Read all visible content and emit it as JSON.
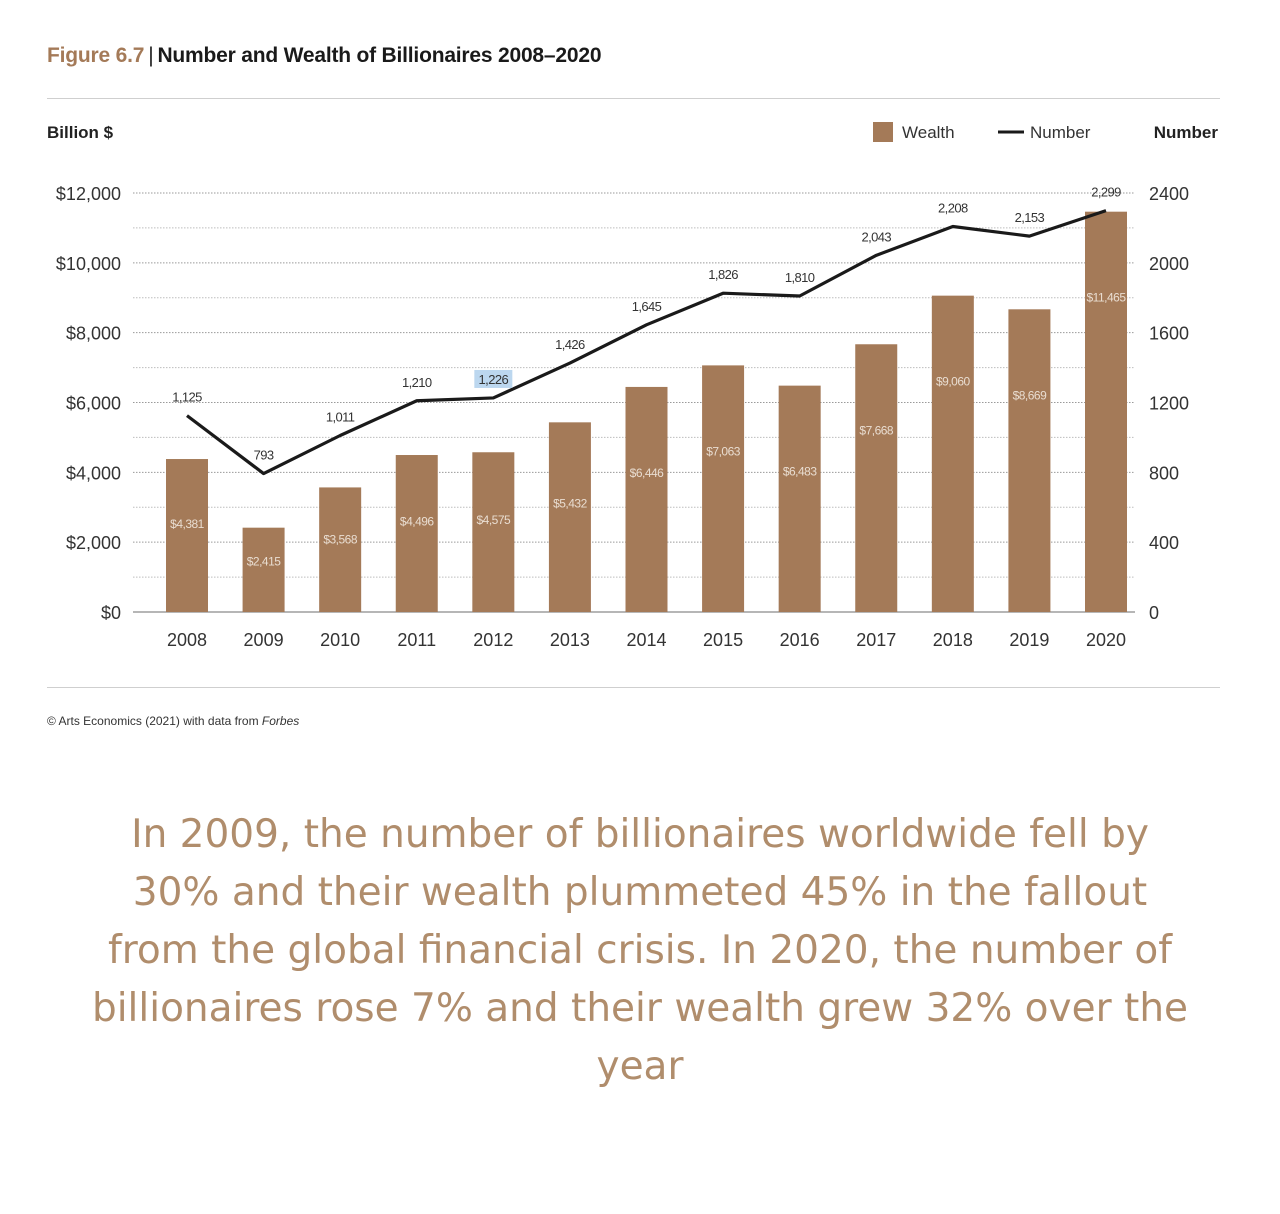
{
  "figure": {
    "label": "Figure 6.7",
    "separator": "|",
    "title": "Number and Wealth of Billionaires 2008–2020"
  },
  "chart_data": {
    "type": "bar",
    "categories": [
      "2008",
      "2009",
      "2010",
      "2011",
      "2012",
      "2013",
      "2014",
      "2015",
      "2016",
      "2017",
      "2018",
      "2019",
      "2020"
    ],
    "series": [
      {
        "name": "Wealth",
        "type": "bar",
        "axis": "left",
        "color": "#a47a58",
        "values": [
          4381,
          2415,
          3568,
          4496,
          4575,
          5432,
          6446,
          7063,
          6483,
          7668,
          9060,
          8669,
          11465
        ],
        "labels": [
          "$4,381",
          "$2,415",
          "$3,568",
          "$4,496",
          "$4,575",
          "$5,432",
          "$6,446",
          "$7,063",
          "$6,483",
          "$7,668",
          "$9,060",
          "$8,669",
          "$11,465"
        ]
      },
      {
        "name": "Number",
        "type": "line",
        "axis": "right",
        "color": "#1a1a1a",
        "values": [
          1125,
          793,
          1011,
          1210,
          1226,
          1426,
          1645,
          1826,
          1810,
          2043,
          2208,
          2153,
          2299
        ],
        "labels": [
          "1,125",
          "793",
          "1,011",
          "1,210",
          "1,226",
          "1,426",
          "1,645",
          "1,826",
          "1,810",
          "2,043",
          "2,208",
          "2,153",
          "2,299"
        ]
      }
    ],
    "left_axis": {
      "label": "Billion $",
      "ylim": [
        0,
        12000
      ],
      "ticks": [
        0,
        2000,
        4000,
        6000,
        8000,
        10000,
        12000
      ],
      "tick_labels": [
        "$0",
        "$2,000",
        "$4,000",
        "$6,000",
        "$8,000",
        "$10,000",
        "$12,000"
      ]
    },
    "right_axis": {
      "label": "Number",
      "ylim": [
        0,
        2400
      ],
      "ticks": [
        0,
        400,
        800,
        1200,
        1600,
        2000,
        2400
      ],
      "tick_labels": [
        "0",
        "400",
        "800",
        "1200",
        "1600",
        "2000",
        "2400"
      ]
    },
    "grid": true,
    "legend": {
      "position": "top-right",
      "items": [
        "Wealth",
        "Number"
      ]
    },
    "highlighted_label": "1,226"
  },
  "footnote": {
    "prefix": "© Arts Economics (2021) with data from ",
    "source": "Forbes"
  },
  "caption": "In 2009, the number of billionaires worldwide fell by 30% and their wealth plummeted 45% in the fallout from the global financial crisis. In 2020, the number of billionaires rose 7% and their wealth grew 32% over the year"
}
